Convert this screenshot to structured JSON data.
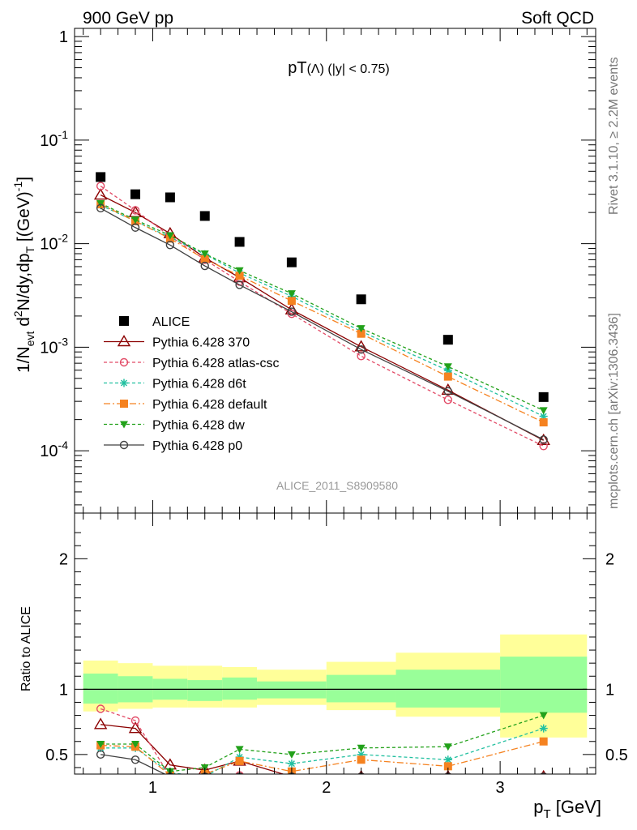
{
  "header": {
    "left": "900 GeV pp",
    "right": "Soft QCD"
  },
  "side_text": {
    "rivet": "Rivet 3.1.10, ≥ 2.2M events",
    "mcplots": "mcplots.cern.ch [arXiv:1306.3436]"
  },
  "analysis_id": "ALICE_2011_S8909580",
  "main_plot": {
    "title": "pT(Λ) (|y| < 0.75)",
    "ylabel": "1/N_evt d²N/dy,dp_T [(GeV)⁻¹]",
    "y_scale": "log",
    "yticks": [
      {
        "value": 1,
        "label": "1"
      },
      {
        "value": 0.1,
        "label": "10^-1"
      },
      {
        "value": 0.01,
        "label": "10^-2"
      },
      {
        "value": 0.001,
        "label": "10^-3"
      },
      {
        "value": 0.0001,
        "label": "10^-4"
      }
    ]
  },
  "ratio_plot": {
    "ylabel": "Ratio to ALICE",
    "yticks": [
      "0.5",
      "1",
      "2"
    ]
  },
  "xaxis": {
    "label": "p_T [GeV]",
    "ticks": [
      "1",
      "2",
      "3"
    ]
  },
  "legend": {
    "placement": "middle-left",
    "entries": [
      "ALICE",
      "Pythia 6.428 370",
      "Pythia 6.428 atlas-csc",
      "Pythia 6.428 d6t",
      "Pythia 6.428 default",
      "Pythia 6.428 dw",
      "Pythia 6.428 p0"
    ]
  },
  "chart_data": {
    "type": "scatter",
    "x_range": [
      0.55,
      3.55
    ],
    "main_y_range": [
      2.5e-05,
      1.2
    ],
    "ratio_y_range": [
      0.35,
      2.35
    ],
    "x": [
      0.7,
      0.9,
      1.1,
      1.3,
      1.5,
      1.8,
      2.2,
      2.7,
      3.25
    ],
    "bins": [
      [
        0.6,
        0.8
      ],
      [
        0.8,
        1.0
      ],
      [
        1.0,
        1.2
      ],
      [
        1.2,
        1.4
      ],
      [
        1.4,
        1.6
      ],
      [
        1.6,
        2.0
      ],
      [
        2.0,
        2.4
      ],
      [
        2.4,
        3.0
      ],
      [
        3.0,
        3.5
      ]
    ],
    "data": {
      "name": "ALICE",
      "color": "#000000",
      "values": [
        0.044,
        0.03,
        0.028,
        0.0185,
        0.0104,
        0.0066,
        0.0029,
        0.00118,
        0.00033
      ],
      "band_inner": [
        [
          0.89,
          1.12
        ],
        [
          0.9,
          1.1
        ],
        [
          0.92,
          1.08
        ],
        [
          0.91,
          1.07
        ],
        [
          0.92,
          1.09
        ],
        [
          0.93,
          1.06
        ],
        [
          0.9,
          1.11
        ],
        [
          0.86,
          1.15
        ],
        [
          0.82,
          1.25
        ]
      ],
      "band_outer": [
        [
          0.83,
          1.22
        ],
        [
          0.85,
          1.2
        ],
        [
          0.86,
          1.18
        ],
        [
          0.86,
          1.18
        ],
        [
          0.86,
          1.17
        ],
        [
          0.88,
          1.15
        ],
        [
          0.84,
          1.21
        ],
        [
          0.79,
          1.28
        ],
        [
          0.63,
          1.42
        ]
      ]
    },
    "series": [
      {
        "name": "Pythia 6.428 370",
        "color": "#8b0000",
        "marker": "triangle-open",
        "dash": "",
        "values": [
          0.0295,
          0.02,
          0.0125,
          0.0073,
          0.0047,
          0.0023,
          0.00101,
          0.000385,
          0.000126
        ],
        "ratio": [
          0.73,
          0.7,
          0.42,
          0.38,
          0.45,
          0.33,
          0.33,
          0.33,
          0.33
        ]
      },
      {
        "name": "Pythia 6.428 atlas-csc",
        "color": "#e24a66",
        "marker": "circle-open",
        "dash": "4,3",
        "values": [
          0.036,
          0.021,
          0.0118,
          0.007,
          0.0043,
          0.0021,
          0.00082,
          0.00031,
          0.000111
        ],
        "ratio": [
          0.85,
          0.76,
          0.33,
          0.33,
          0.34,
          0.33,
          0.33,
          0.33,
          0.33
        ]
      },
      {
        "name": "Pythia 6.428 d6t",
        "color": "#22c0a0",
        "marker": "star",
        "dash": "4,3",
        "values": [
          0.0235,
          0.0165,
          0.0115,
          0.0079,
          0.0052,
          0.0031,
          0.00142,
          0.000595,
          0.000215
        ],
        "ratio": [
          0.55,
          0.55,
          0.36,
          0.33,
          0.48,
          0.43,
          0.5,
          0.46,
          0.7
        ]
      },
      {
        "name": "Pythia 6.428 default",
        "color": "#f58220",
        "marker": "square",
        "dash": "8,3,2,3",
        "values": [
          0.024,
          0.0165,
          0.0112,
          0.0071,
          0.0049,
          0.0028,
          0.00135,
          0.00052,
          0.000188
        ],
        "ratio": [
          0.57,
          0.56,
          0.34,
          0.35,
          0.45,
          0.37,
          0.46,
          0.41,
          0.6
        ]
      },
      {
        "name": "Pythia 6.428 dw",
        "color": "#22a11a",
        "marker": "triangle-down",
        "dash": "4,3",
        "values": [
          0.0245,
          0.017,
          0.012,
          0.008,
          0.0055,
          0.0033,
          0.00152,
          0.00065,
          0.000245
        ],
        "ratio": [
          0.58,
          0.58,
          0.37,
          0.4,
          0.54,
          0.5,
          0.55,
          0.56,
          0.8
        ]
      },
      {
        "name": "Pythia 6.428 p0",
        "color": "#404040",
        "marker": "circle-open",
        "dash": "",
        "values": [
          0.022,
          0.0143,
          0.0097,
          0.0061,
          0.004,
          0.0022,
          0.00095,
          0.000375,
          0.000128
        ],
        "ratio": [
          0.5,
          0.46,
          0.33,
          0.33,
          0.33,
          0.33,
          0.33,
          0.33,
          0.33
        ]
      }
    ]
  }
}
